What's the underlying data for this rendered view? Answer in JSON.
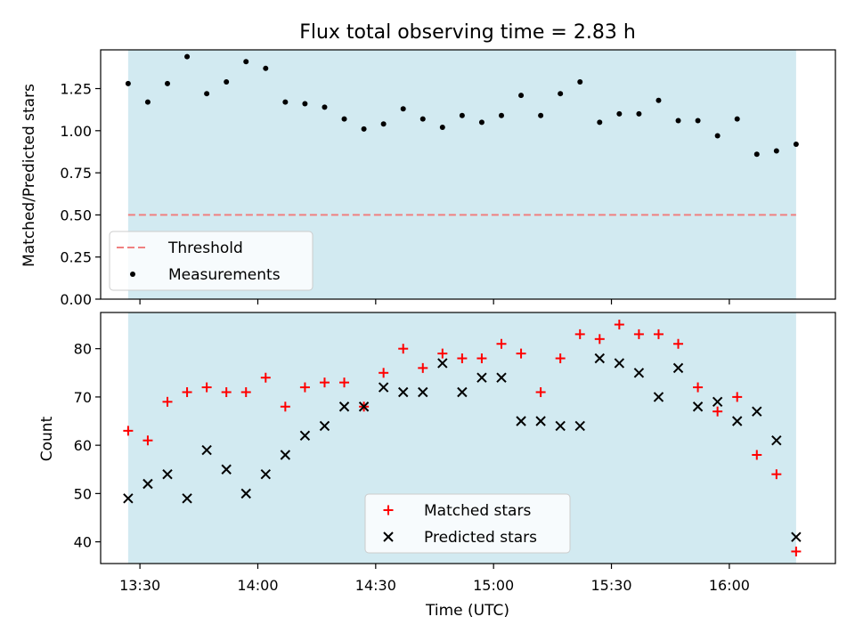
{
  "figure": {
    "title": "Flux total observing time = 2.83 h"
  },
  "chart_data": [
    {
      "type": "scatter",
      "panel": "top",
      "xlabel": "",
      "ylabel": "Matched/Predicted stars",
      "ylim": [
        0.0,
        1.48
      ],
      "yticks": [
        "0.00",
        "0.25",
        "0.50",
        "0.75",
        "1.00",
        "1.25"
      ],
      "grid": false,
      "legend_position": "lower-left",
      "shaded_band_color": "#add8e6",
      "threshold": {
        "name": "Threshold",
        "value": 0.5,
        "color": "#f08080",
        "style": "dashed"
      },
      "series": [
        {
          "name": "Measurements",
          "color": "#000000",
          "marker": "dot",
          "y": [
            1.28,
            1.17,
            1.28,
            1.44,
            1.22,
            1.29,
            1.41,
            1.37,
            1.17,
            1.16,
            1.14,
            1.07,
            1.01,
            1.04,
            1.13,
            1.07,
            1.02,
            1.09,
            1.05,
            1.09,
            1.21,
            1.09,
            1.22,
            1.29,
            1.05,
            1.1,
            1.1,
            1.18,
            1.06,
            1.06,
            0.97,
            1.07,
            0.86,
            0.88,
            0.92
          ]
        }
      ]
    },
    {
      "type": "scatter",
      "panel": "bottom",
      "xlabel": "Time (UTC)",
      "ylabel": "Count",
      "ylim": [
        35.5,
        87.5
      ],
      "yticks": [
        "40",
        "50",
        "60",
        "70",
        "80"
      ],
      "xticks": [
        "13:30",
        "14:00",
        "14:30",
        "15:00",
        "15:30",
        "16:00"
      ],
      "grid": false,
      "legend_position": "lower-center",
      "shaded_band_color": "#add8e6",
      "series": [
        {
          "name": "Matched stars",
          "color": "#ff0000",
          "marker": "plus",
          "y": [
            63,
            61,
            69,
            71,
            72,
            71,
            71,
            74,
            68,
            72,
            73,
            73,
            68,
            75,
            80,
            76,
            79,
            78,
            78,
            81,
            79,
            71,
            78,
            83,
            82,
            85,
            83,
            83,
            81,
            72,
            67,
            70,
            58,
            54,
            38
          ]
        },
        {
          "name": "Predicted stars",
          "color": "#000000",
          "marker": "x",
          "y": [
            49,
            52,
            54,
            49,
            59,
            55,
            50,
            54,
            58,
            62,
            64,
            68,
            68,
            72,
            71,
            71,
            77,
            71,
            74,
            74,
            65,
            65,
            64,
            64,
            78,
            77,
            75,
            70,
            76,
            68,
            69,
            65,
            67,
            61,
            41
          ]
        }
      ]
    }
  ],
  "time_axis": {
    "start": "13:27",
    "step_minutes": 5,
    "range": [
      "13:20",
      "16:27"
    ]
  }
}
